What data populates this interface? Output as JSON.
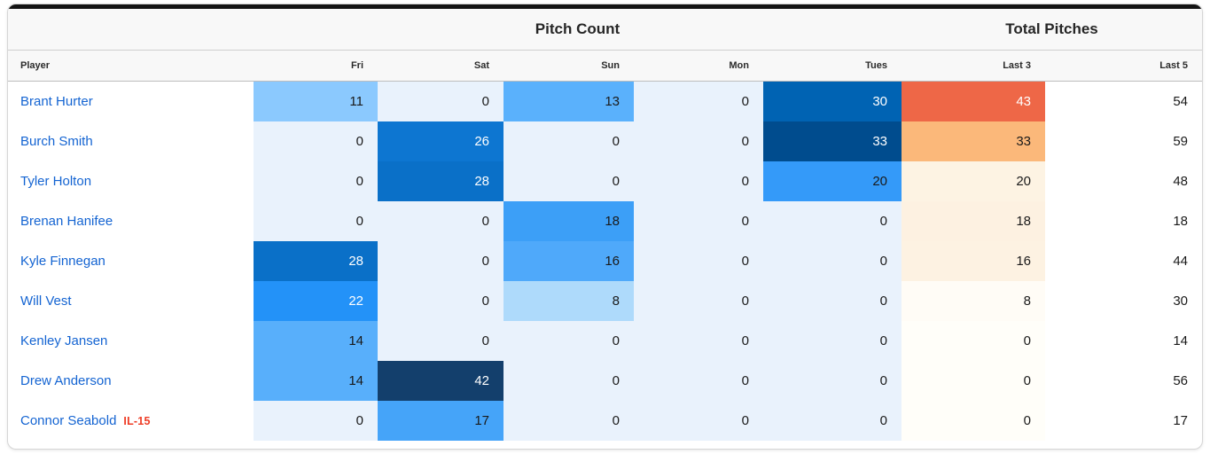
{
  "card": {
    "accent_bar_color": "#141414",
    "group_headers": [
      {
        "label": "Pitch Count"
      },
      {
        "label": "Total Pitches"
      }
    ],
    "column_headers": [
      "Player",
      "Fri",
      "Sat",
      "Sun",
      "Mon",
      "Tues",
      "Last 3",
      "Last 5"
    ],
    "rows": [
      {
        "player": "Brant Hurter",
        "status": "",
        "cells": [
          {
            "v": "11",
            "bg": "#8bc9fe",
            "fg": "#1a1a1a"
          },
          {
            "v": "0",
            "bg": "#e9f2fc",
            "fg": "#1a1a1a"
          },
          {
            "v": "13",
            "bg": "#5ab1fc",
            "fg": "#1a1a1a"
          },
          {
            "v": "0",
            "bg": "#e9f2fc",
            "fg": "#1a1a1a"
          },
          {
            "v": "30",
            "bg": "#0063b3",
            "fg": "#ffffff"
          },
          {
            "v": "43",
            "bg": "#ee6747",
            "fg": "#ffffff"
          }
        ],
        "last5": "54"
      },
      {
        "player": "Burch Smith",
        "status": "",
        "cells": [
          {
            "v": "0",
            "bg": "#e9f2fc",
            "fg": "#1a1a1a"
          },
          {
            "v": "26",
            "bg": "#0d76d1",
            "fg": "#ffffff"
          },
          {
            "v": "0",
            "bg": "#e9f2fc",
            "fg": "#1a1a1a"
          },
          {
            "v": "0",
            "bg": "#e9f2fc",
            "fg": "#1a1a1a"
          },
          {
            "v": "33",
            "bg": "#004c8e",
            "fg": "#ffffff"
          },
          {
            "v": "33",
            "bg": "#fbb87a",
            "fg": "#1a1a1a"
          }
        ],
        "last5": "59"
      },
      {
        "player": "Tyler Holton",
        "status": "",
        "cells": [
          {
            "v": "0",
            "bg": "#e9f2fc",
            "fg": "#1a1a1a"
          },
          {
            "v": "28",
            "bg": "#0a70c8",
            "fg": "#ffffff"
          },
          {
            "v": "0",
            "bg": "#e9f2fc",
            "fg": "#1a1a1a"
          },
          {
            "v": "0",
            "bg": "#e9f2fc",
            "fg": "#1a1a1a"
          },
          {
            "v": "20",
            "bg": "#349af9",
            "fg": "#1a1a1a"
          },
          {
            "v": "20",
            "bg": "#fdf3e3",
            "fg": "#1a1a1a"
          }
        ],
        "last5": "48"
      },
      {
        "player": "Brenan Hanifee",
        "status": "",
        "cells": [
          {
            "v": "0",
            "bg": "#e9f2fc",
            "fg": "#1a1a1a"
          },
          {
            "v": "0",
            "bg": "#e9f2fc",
            "fg": "#1a1a1a"
          },
          {
            "v": "18",
            "bg": "#3c9ff7",
            "fg": "#1a1a1a"
          },
          {
            "v": "0",
            "bg": "#e9f2fc",
            "fg": "#1a1a1a"
          },
          {
            "v": "0",
            "bg": "#e9f2fc",
            "fg": "#1a1a1a"
          },
          {
            "v": "18",
            "bg": "#fdf1e1",
            "fg": "#1a1a1a"
          }
        ],
        "last5": "18"
      },
      {
        "player": "Kyle Finnegan",
        "status": "",
        "cells": [
          {
            "v": "28",
            "bg": "#0a70c8",
            "fg": "#ffffff"
          },
          {
            "v": "0",
            "bg": "#e9f2fc",
            "fg": "#1a1a1a"
          },
          {
            "v": "16",
            "bg": "#4fa9fa",
            "fg": "#1a1a1a"
          },
          {
            "v": "0",
            "bg": "#e9f2fc",
            "fg": "#1a1a1a"
          },
          {
            "v": "0",
            "bg": "#e9f2fc",
            "fg": "#1a1a1a"
          },
          {
            "v": "16",
            "bg": "#fdf2e2",
            "fg": "#1a1a1a"
          }
        ],
        "last5": "44"
      },
      {
        "player": "Will Vest",
        "status": "",
        "cells": [
          {
            "v": "22",
            "bg": "#2392f8",
            "fg": "#ffffff"
          },
          {
            "v": "0",
            "bg": "#e9f2fc",
            "fg": "#1a1a1a"
          },
          {
            "v": "8",
            "bg": "#aedafb",
            "fg": "#1a1a1a"
          },
          {
            "v": "0",
            "bg": "#e9f2fc",
            "fg": "#1a1a1a"
          },
          {
            "v": "0",
            "bg": "#e9f2fc",
            "fg": "#1a1a1a"
          },
          {
            "v": "8",
            "bg": "#fffcf6",
            "fg": "#1a1a1a"
          }
        ],
        "last5": "30"
      },
      {
        "player": "Kenley Jansen",
        "status": "",
        "cells": [
          {
            "v": "14",
            "bg": "#58affb",
            "fg": "#1a1a1a"
          },
          {
            "v": "0",
            "bg": "#e9f2fc",
            "fg": "#1a1a1a"
          },
          {
            "v": "0",
            "bg": "#e9f2fc",
            "fg": "#1a1a1a"
          },
          {
            "v": "0",
            "bg": "#e9f2fc",
            "fg": "#1a1a1a"
          },
          {
            "v": "0",
            "bg": "#e9f2fc",
            "fg": "#1a1a1a"
          },
          {
            "v": "0",
            "bg": "#fffef9",
            "fg": "#1a1a1a"
          }
        ],
        "last5": "14"
      },
      {
        "player": "Drew Anderson",
        "status": "",
        "cells": [
          {
            "v": "14",
            "bg": "#58affb",
            "fg": "#1a1a1a"
          },
          {
            "v": "42",
            "bg": "#133f6c",
            "fg": "#ffffff"
          },
          {
            "v": "0",
            "bg": "#e9f2fc",
            "fg": "#1a1a1a"
          },
          {
            "v": "0",
            "bg": "#e9f2fc",
            "fg": "#1a1a1a"
          },
          {
            "v": "0",
            "bg": "#e9f2fc",
            "fg": "#1a1a1a"
          },
          {
            "v": "0",
            "bg": "#fffef9",
            "fg": "#1a1a1a"
          }
        ],
        "last5": "56"
      },
      {
        "player": "Connor Seabold",
        "status": "IL-15",
        "cells": [
          {
            "v": "0",
            "bg": "#e9f2fc",
            "fg": "#1a1a1a"
          },
          {
            "v": "17",
            "bg": "#45a4f9",
            "fg": "#1a1a1a"
          },
          {
            "v": "0",
            "bg": "#e9f2fc",
            "fg": "#1a1a1a"
          },
          {
            "v": "0",
            "bg": "#e9f2fc",
            "fg": "#1a1a1a"
          },
          {
            "v": "0",
            "bg": "#e9f2fc",
            "fg": "#1a1a1a"
          },
          {
            "v": "0",
            "bg": "#fffef9",
            "fg": "#1a1a1a"
          }
        ],
        "last5": "17"
      }
    ]
  },
  "colors": {
    "player_link": "#1464d2",
    "status_il": "#ee3c25",
    "header_bg": "#f8f8f8",
    "top_accent": "#141414",
    "heat_zero_blue": "#e9f2fc",
    "heat_max_blue": "#133f6c",
    "heat_max_orange": "#ee6747"
  },
  "chart_data": {
    "type": "heatmap",
    "title": "Pitch Count / Total Pitches",
    "columns": [
      "Fri",
      "Sat",
      "Sun",
      "Mon",
      "Tues",
      "Last 3",
      "Last 5"
    ],
    "rows": [
      "Brant Hurter",
      "Burch Smith",
      "Tyler Holton",
      "Brenan Hanifee",
      "Kyle Finnegan",
      "Will Vest",
      "Kenley Jansen",
      "Drew Anderson",
      "Connor Seabold"
    ],
    "values": [
      [
        11,
        0,
        13,
        0,
        30,
        43,
        54
      ],
      [
        0,
        26,
        0,
        0,
        33,
        33,
        59
      ],
      [
        0,
        28,
        0,
        0,
        20,
        20,
        48
      ],
      [
        0,
        0,
        18,
        0,
        0,
        18,
        18
      ],
      [
        28,
        0,
        16,
        0,
        0,
        16,
        44
      ],
      [
        22,
        0,
        8,
        0,
        0,
        8,
        30
      ],
      [
        14,
        0,
        0,
        0,
        0,
        0,
        14
      ],
      [
        14,
        42,
        0,
        0,
        0,
        0,
        56
      ],
      [
        0,
        17,
        0,
        0,
        0,
        0,
        17
      ]
    ],
    "layout_hints": {
      "day_columns_scale": "blues, 0 (lightest) to 42 (darkest navy)",
      "last3_scale": "white to orange-red, 0 to 43",
      "last5_column": "plain white, no heat coloring"
    }
  }
}
